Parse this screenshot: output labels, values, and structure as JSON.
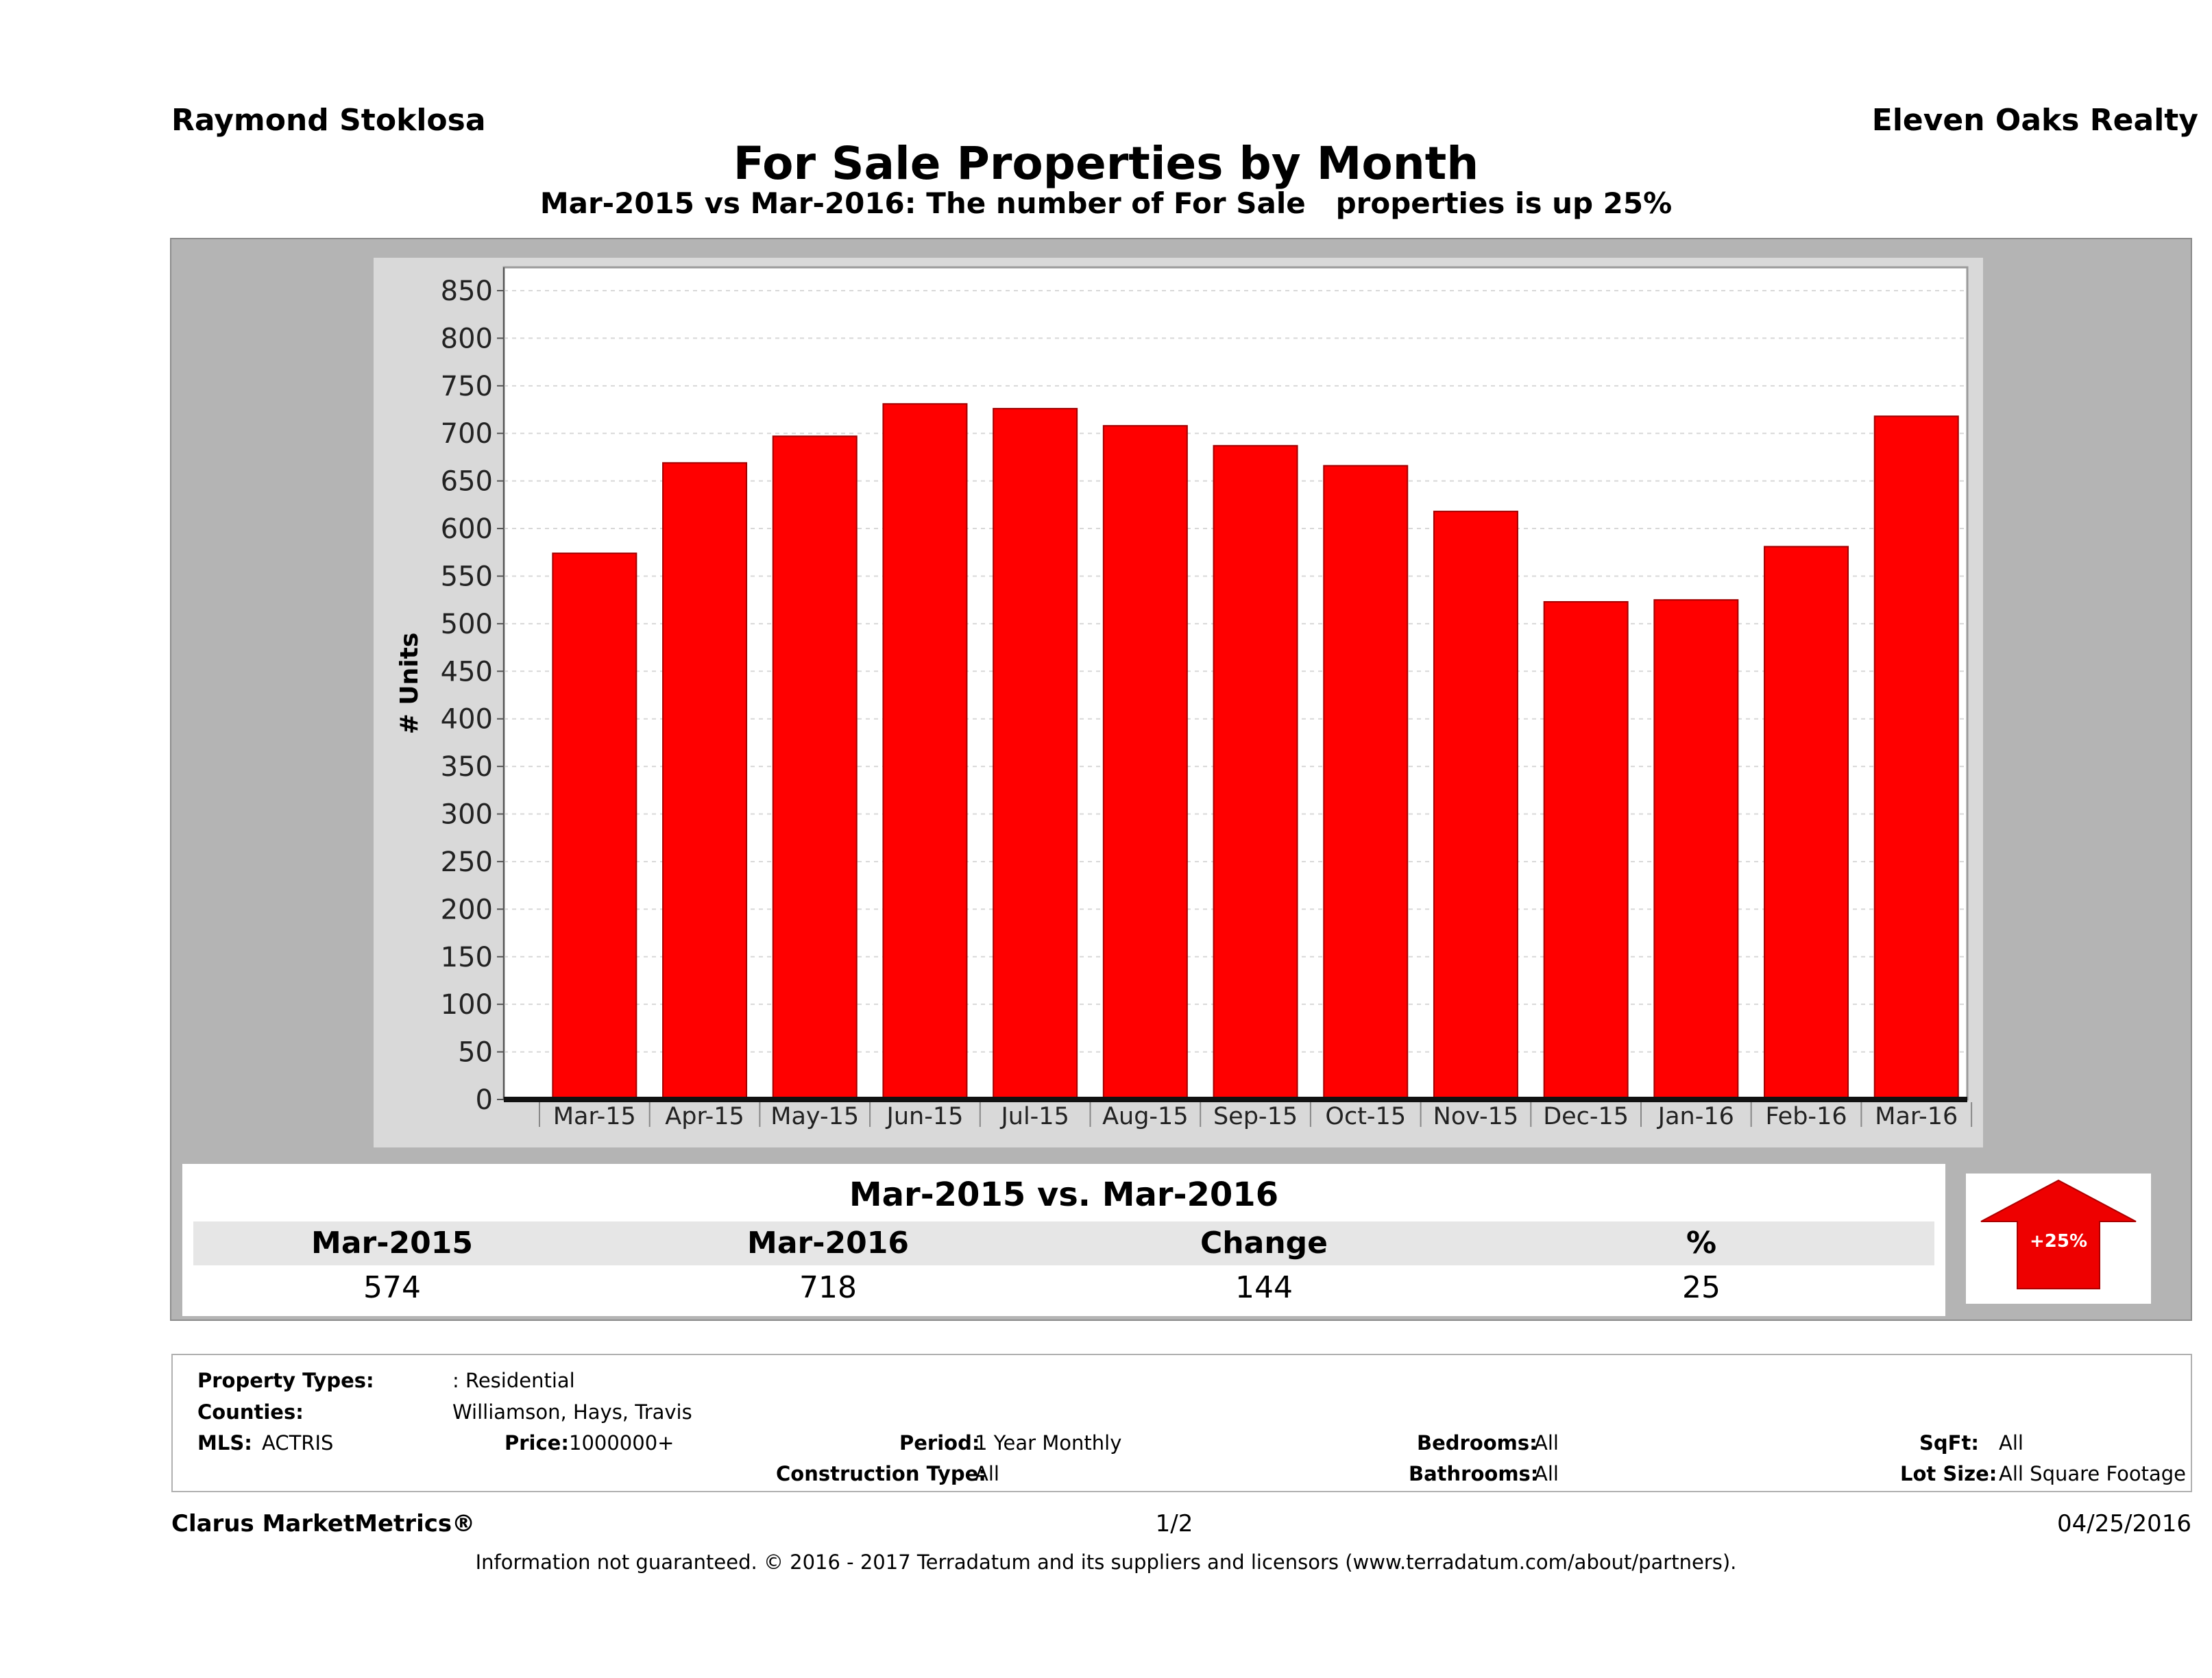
{
  "header": {
    "agent": "Raymond Stoklosa",
    "broker": "Eleven Oaks Realty",
    "title": "For Sale Properties by Month",
    "subtitle": "Mar-2015 vs Mar-2016: The number of For Sale   properties is up 25%"
  },
  "chart_data": {
    "type": "bar",
    "categories": [
      "Mar-15",
      "Apr-15",
      "May-15",
      "Jun-15",
      "Jul-15",
      "Aug-15",
      "Sep-15",
      "Oct-15",
      "Nov-15",
      "Dec-15",
      "Jan-16",
      "Feb-16",
      "Mar-16"
    ],
    "values": [
      574,
      669,
      697,
      731,
      726,
      708,
      687,
      666,
      618,
      523,
      525,
      581,
      718
    ],
    "ylabel": "# Units",
    "ylim": [
      0,
      850
    ],
    "yticks": [
      0,
      50,
      100,
      150,
      200,
      250,
      300,
      350,
      400,
      450,
      500,
      550,
      600,
      650,
      700,
      750,
      800,
      850
    ],
    "grid": true,
    "bar_color": "#ff0000"
  },
  "comparison": {
    "title": "Mar-2015 vs. Mar-2016",
    "headers": [
      "Mar-2015",
      "Mar-2016",
      "Change",
      "%"
    ],
    "values": [
      "574",
      "718",
      "144",
      "25"
    ],
    "badge": "+25%"
  },
  "criteria": {
    "property_types_label": "Property Types:",
    "property_types_value": ": Residential",
    "counties_label": "Counties:",
    "counties_value": "Williamson, Hays, Travis",
    "mls_label": "MLS:",
    "mls_value": "ACTRIS",
    "price_label": "Price:",
    "price_value": "1000000+",
    "period_label": "Period:",
    "period_value": "1 Year Monthly",
    "construction_label": "Construction Type:",
    "construction_value": "All",
    "bedrooms_label": "Bedrooms:",
    "bedrooms_value": "All",
    "bathrooms_label": "Bathrooms:",
    "bathrooms_value": "All",
    "sqft_label": "SqFt:",
    "sqft_value": "All",
    "lot_label": "Lot Size:",
    "lot_value": "All Square Footage"
  },
  "footer": {
    "brand": "Clarus MarketMetrics®",
    "page": "1/2",
    "date": "04/25/2016",
    "note": "Information not guaranteed. © 2016 - 2017 Terradatum and its suppliers and licensors (www.terradatum.com/about/partners)."
  }
}
